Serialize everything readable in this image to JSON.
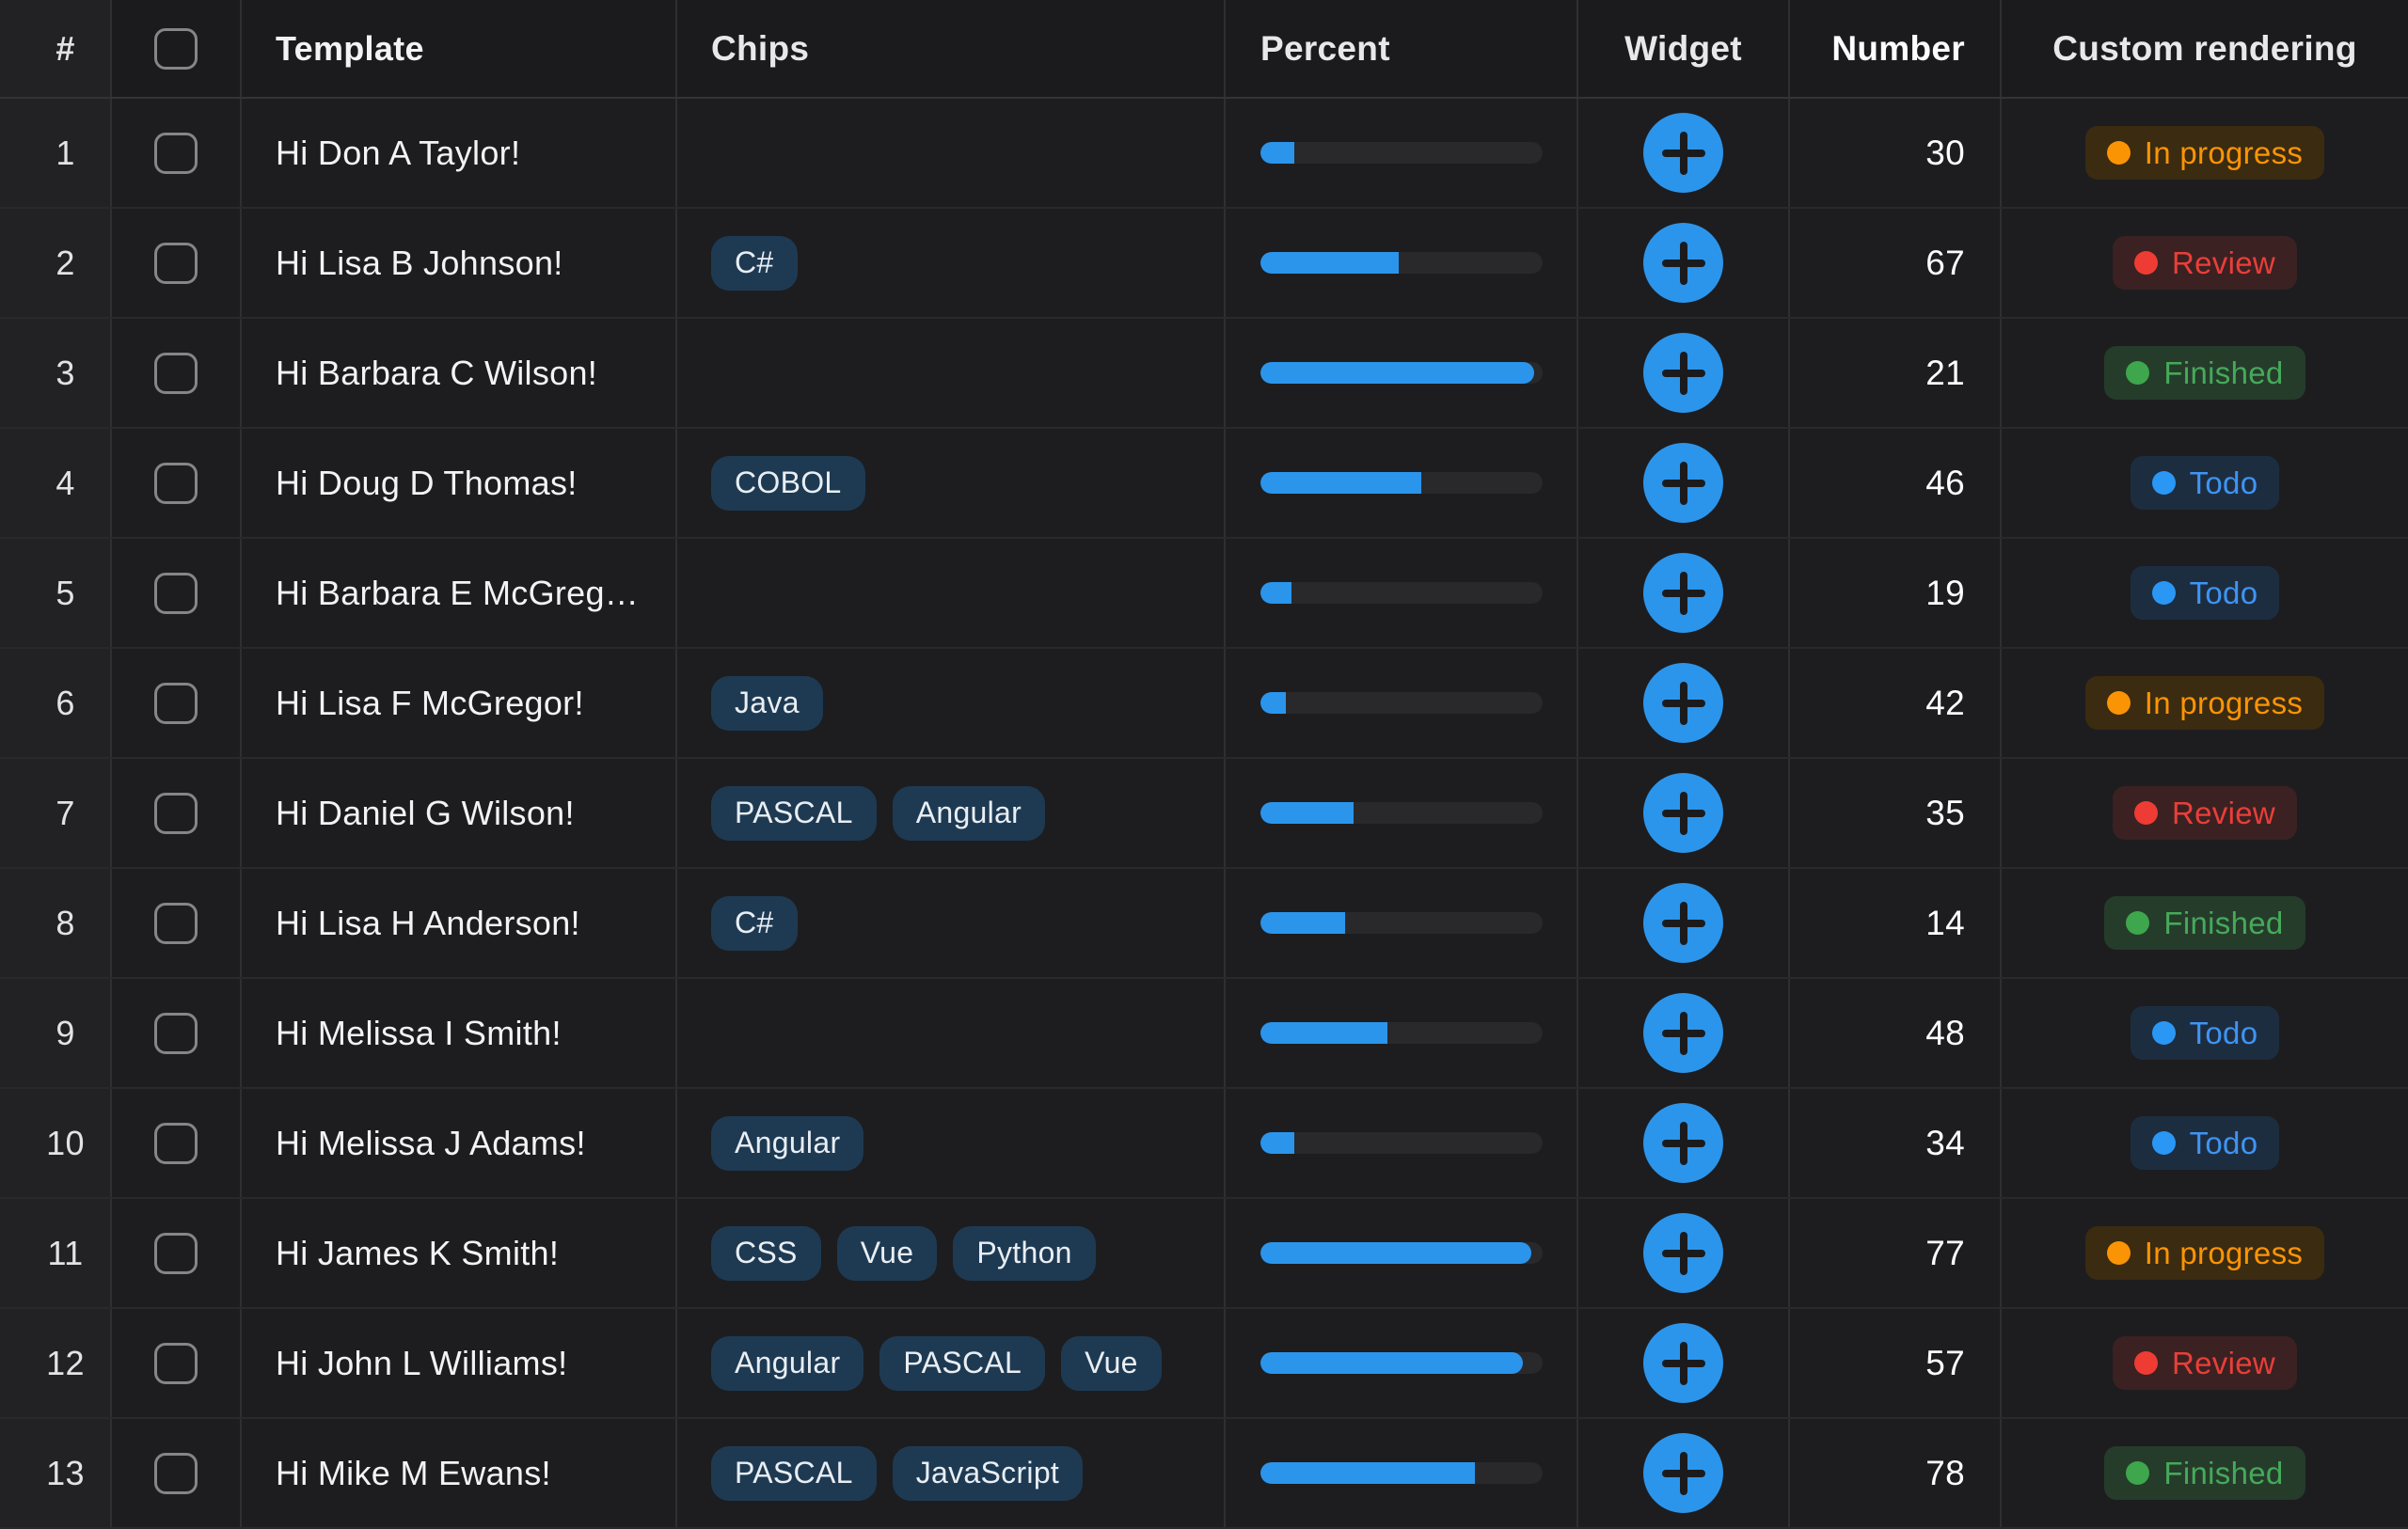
{
  "table": {
    "columns": [
      {
        "label": "#"
      },
      {
        "label": ""
      },
      {
        "label": "Template"
      },
      {
        "label": "Chips"
      },
      {
        "label": "Percent"
      },
      {
        "label": "Widget"
      },
      {
        "label": "Number"
      },
      {
        "label": "Custom rendering"
      }
    ],
    "widget_button_glyph": "+",
    "rows": [
      {
        "index": 1,
        "template": "Hi Don A Taylor!",
        "chips": [],
        "percent": 12,
        "number": 30,
        "status": "In progress",
        "status_key": "in-progress"
      },
      {
        "index": 2,
        "template": "Hi Lisa B Johnson!",
        "chips": [
          "C#"
        ],
        "percent": 49,
        "number": 67,
        "status": "Review",
        "status_key": "review"
      },
      {
        "index": 3,
        "template": "Hi Barbara C Wilson!",
        "chips": [],
        "percent": 97,
        "number": 21,
        "status": "Finished",
        "status_key": "finished"
      },
      {
        "index": 4,
        "template": "Hi Doug D Thomas!",
        "chips": [
          "COBOL"
        ],
        "percent": 57,
        "number": 46,
        "status": "Todo",
        "status_key": "todo"
      },
      {
        "index": 5,
        "template": "Hi Barbara E McGreg…",
        "chips": [],
        "percent": 11,
        "number": 19,
        "status": "Todo",
        "status_key": "todo"
      },
      {
        "index": 6,
        "template": "Hi Lisa F McGregor!",
        "chips": [
          "Java"
        ],
        "percent": 9,
        "number": 42,
        "status": "In progress",
        "status_key": "in-progress"
      },
      {
        "index": 7,
        "template": "Hi Daniel G Wilson!",
        "chips": [
          "PASCAL",
          "Angular"
        ],
        "percent": 33,
        "number": 35,
        "status": "Review",
        "status_key": "review"
      },
      {
        "index": 8,
        "template": "Hi Lisa H Anderson!",
        "chips": [
          "C#"
        ],
        "percent": 30,
        "number": 14,
        "status": "Finished",
        "status_key": "finished"
      },
      {
        "index": 9,
        "template": "Hi Melissa I Smith!",
        "chips": [],
        "percent": 45,
        "number": 48,
        "status": "Todo",
        "status_key": "todo"
      },
      {
        "index": 10,
        "template": "Hi Melissa J Adams!",
        "chips": [
          "Angular"
        ],
        "percent": 12,
        "number": 34,
        "status": "Todo",
        "status_key": "todo"
      },
      {
        "index": 11,
        "template": "Hi James K Smith!",
        "chips": [
          "CSS",
          "Vue",
          "Python"
        ],
        "percent": 96,
        "number": 77,
        "status": "In progress",
        "status_key": "in-progress"
      },
      {
        "index": 12,
        "template": "Hi John L Williams!",
        "chips": [
          "Angular",
          "PASCAL",
          "Vue"
        ],
        "percent": 93,
        "number": 57,
        "status": "Review",
        "status_key": "review"
      },
      {
        "index": 13,
        "template": "Hi Mike M Ewans!",
        "chips": [
          "PASCAL",
          "JavaScript"
        ],
        "percent": 76,
        "number": 78,
        "status": "Finished",
        "status_key": "finished"
      }
    ],
    "colors": {
      "accent_blue": "#2b95ec",
      "chip_bg": "#1e3a53",
      "progress_track": "#29292b",
      "status": {
        "in-progress": {
          "bg": "#3b2b10",
          "fg": "#fb9405",
          "dot": "#fb9405"
        },
        "review": {
          "bg": "#3b2122",
          "fg": "#ea3e38",
          "dot": "#ee3c34"
        },
        "finished": {
          "bg": "#253c2b",
          "fg": "#46a95a",
          "dot": "#3ea64c"
        },
        "todo": {
          "bg": "#1d2d40",
          "fg": "#3f94f4",
          "dot": "#2a97f5"
        }
      }
    }
  }
}
